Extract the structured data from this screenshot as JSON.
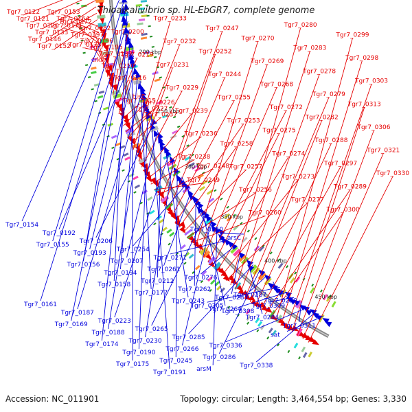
{
  "title": "Thioalkalivibrio sp. HL-EbGR7, complete genome",
  "footer": {
    "accession": "Accession: NC_011901",
    "summary": "Topology: circular; Length: 3,464,554 bp; Genes: 3,330"
  },
  "colors": {
    "forward": "#e60000",
    "reverse": "#0000dd",
    "backbone": "#888888",
    "tick_green": "#1a8a1a"
  },
  "scale_labels": [
    "150 kbp",
    "200 kbp",
    "250 kbp",
    "300 kbp",
    "350 kbp",
    "400 kbp",
    "450 kbp"
  ],
  "forward_labels": [
    "Tgr7_0122",
    "Tgr7_0121",
    "Tgr7_0120",
    "Tgr7_0133",
    "Tgr7_0146",
    "Tgr7_0152",
    "Tgr7_0153",
    "Tgr7_0164",
    "Tgr7_0171",
    "Tgr7_0172",
    "Tgr7_0173",
    "Tgr7_0182",
    "Tgr7_0197",
    "Tgr7_0196",
    "Tgr7_0195",
    "Tgr7_0189",
    "trkA",
    "Tgr7_0210",
    "Tgr7_0200",
    "Tgr7_0219",
    "Tgr7_0216",
    "Tgr7_0215",
    "hisE",
    "Tgr7_0226",
    "Tgr7_0227",
    "Tgr7_0237",
    "Tgr7_0233",
    "Tgr7_0232",
    "Tgr7_0231",
    "Tgr7_0229",
    "Tgr7_0239",
    "Tgr7_0236",
    "Tgr7_0238",
    "Tgr7_0249",
    "Tgr7_0248",
    "Tgr7_0247",
    "Tgr7_0252",
    "Tgr7_0244",
    "Tgr7_0255",
    "Tgr7_0253",
    "Tgr7_0258",
    "Tgr7_0257",
    "Tgr7_0256",
    "Tgr7_0260",
    "Tgr7_0270",
    "Tgr7_0269",
    "Tgr7_0268",
    "Tgr7_0272",
    "Tgr7_0275",
    "Tgr7_0274",
    "Tgr7_0273",
    "Tgr7_0277",
    "Tgr7_0280",
    "Tgr7_0283",
    "Tgr7_0278",
    "Tgr7_0279",
    "Tgr7_0282",
    "Tgr7_0288",
    "Tgr7_0297",
    "Tgr7_0289",
    "Tgr7_0300",
    "Tgr7_0299",
    "Tgr7_0298",
    "Tgr7_0303",
    "Tgr7_0313",
    "Tgr7_0306",
    "Tgr7_0321",
    "Tgr7_0330"
  ],
  "reverse_labels": [
    "Tgr7_0154",
    "Tgr7_0155",
    "Tgr7_0156",
    "Tgr7_0158",
    "Tgr7_0161",
    "Tgr7_0169",
    "Tgr7_0174",
    "Tgr7_0175",
    "Tgr7_0192",
    "Tgr7_0193",
    "Tgr7_0194",
    "Tgr7_0177",
    "Tgr7_0187",
    "Tgr7_0188",
    "Tgr7_0190",
    "Tgr7_0191",
    "Tgr7_0206",
    "Tgr7_0207",
    "Tgr7_0212",
    "Tgr7_0243",
    "Tgr7_0223",
    "Tgr7_0230",
    "Tgr7_0245",
    "Tgr7_0250",
    "Tgr7_0254",
    "Tgr7_0261",
    "Tgr7_0262",
    "Tgr7_0264",
    "Tgr7_0265",
    "Tgr7_0266",
    "arsM",
    "arsC",
    "Tgr7_0271",
    "Tgr7_0276",
    "Tgr7_0281",
    "Tgr7_0284",
    "Tgr7_0285",
    "Tgr7_0286",
    "Tgr7_0287",
    "Tgr7_0290",
    "Tgr7_0305",
    "Tgr7_0308",
    "Tgr7_0309",
    "Tgr7_0311",
    "Tgr7_0336",
    "Tgr7_0338",
    "sat"
  ]
}
